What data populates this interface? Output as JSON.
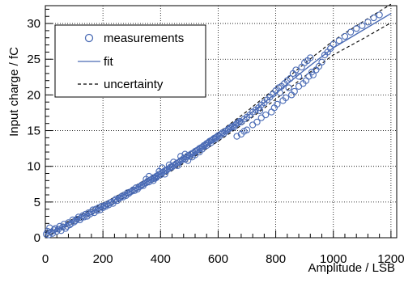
{
  "chart_data": {
    "type": "scatter",
    "xlabel": "Amplitude / LSB",
    "ylabel": "Input charge / fC",
    "xlim": [
      0,
      1220
    ],
    "ylim": [
      0,
      32.5
    ],
    "x_ticks": [
      0,
      200,
      400,
      600,
      800,
      1000,
      1200
    ],
    "y_ticks": [
      0,
      5,
      10,
      15,
      20,
      25,
      30
    ],
    "grid": true,
    "legend_position": "top-left",
    "legend": [
      {
        "label": "measurements",
        "style": "open-circle"
      },
      {
        "label": "fit",
        "style": "solid-line"
      },
      {
        "label": "uncertainty",
        "style": "dashed-line"
      }
    ],
    "colors": {
      "measurements": "#4a6bb5",
      "fit": "#4a6bb5",
      "uncertainty": "#000000"
    },
    "series": [
      {
        "name": "measurements",
        "kind": "points",
        "points": [
          [
            3,
            0.5
          ],
          [
            8,
            0.9
          ],
          [
            12,
            0.4
          ],
          [
            15,
            1.4
          ],
          [
            20,
            0.8
          ],
          [
            25,
            0.6
          ],
          [
            30,
            1.1
          ],
          [
            35,
            1.3
          ],
          [
            40,
            0.9
          ],
          [
            45,
            1.2
          ],
          [
            50,
            1.6
          ],
          [
            55,
            1.0
          ],
          [
            60,
            1.5
          ],
          [
            65,
            1.9
          ],
          [
            70,
            1.3
          ],
          [
            75,
            1.6
          ],
          [
            80,
            2.1
          ],
          [
            85,
            1.8
          ],
          [
            90,
            2.0
          ],
          [
            95,
            2.5
          ],
          [
            100,
            2.2
          ],
          [
            105,
            2.4
          ],
          [
            110,
            2.6
          ],
          [
            115,
            2.9
          ],
          [
            120,
            2.5
          ],
          [
            125,
            2.8
          ],
          [
            130,
            3.1
          ],
          [
            135,
            2.9
          ],
          [
            140,
            3.3
          ],
          [
            145,
            3.0
          ],
          [
            150,
            3.5
          ],
          [
            155,
            3.3
          ],
          [
            160,
            3.6
          ],
          [
            165,
            3.9
          ],
          [
            170,
            3.5
          ],
          [
            175,
            4.0
          ],
          [
            180,
            3.8
          ],
          [
            185,
            4.2
          ],
          [
            190,
            3.9
          ],
          [
            195,
            4.4
          ],
          [
            200,
            4.2
          ],
          [
            205,
            4.5
          ],
          [
            210,
            4.4
          ],
          [
            215,
            4.7
          ],
          [
            220,
            4.6
          ],
          [
            225,
            4.9
          ],
          [
            230,
            5.0
          ],
          [
            235,
            4.8
          ],
          [
            240,
            5.2
          ],
          [
            245,
            5.4
          ],
          [
            250,
            5.2
          ],
          [
            255,
            5.5
          ],
          [
            260,
            5.6
          ],
          [
            265,
            5.8
          ],
          [
            270,
            5.7
          ],
          [
            275,
            6.0
          ],
          [
            280,
            5.9
          ],
          [
            285,
            6.3
          ],
          [
            290,
            6.2
          ],
          [
            295,
            6.4
          ],
          [
            300,
            6.5
          ],
          [
            305,
            6.7
          ],
          [
            310,
            6.6
          ],
          [
            315,
            7.0
          ],
          [
            320,
            6.8
          ],
          [
            325,
            7.1
          ],
          [
            330,
            7.2
          ],
          [
            335,
            7.4
          ],
          [
            340,
            7.3
          ],
          [
            345,
            7.6
          ],
          [
            350,
            7.7
          ],
          [
            355,
            7.9
          ],
          [
            360,
            7.8
          ],
          [
            365,
            8.1
          ],
          [
            370,
            8.2
          ],
          [
            375,
            8.4
          ],
          [
            380,
            8.3
          ],
          [
            385,
            8.6
          ],
          [
            390,
            8.7
          ],
          [
            395,
            8.9
          ],
          [
            400,
            8.8
          ],
          [
            405,
            9.1
          ],
          [
            410,
            9.2
          ],
          [
            415,
            9.4
          ],
          [
            420,
            9.4
          ],
          [
            425,
            9.6
          ],
          [
            430,
            9.7
          ],
          [
            435,
            9.9
          ],
          [
            440,
            9.9
          ],
          [
            445,
            10.1
          ],
          [
            450,
            10.2
          ],
          [
            455,
            10.4
          ],
          [
            460,
            10.5
          ],
          [
            465,
            10.6
          ],
          [
            470,
            10.8
          ],
          [
            475,
            10.9
          ],
          [
            480,
            11.1
          ],
          [
            485,
            11.0
          ],
          [
            490,
            11.3
          ],
          [
            495,
            11.5
          ],
          [
            500,
            11.4
          ],
          [
            505,
            11.7
          ],
          [
            510,
            11.8
          ],
          [
            515,
            11.9
          ],
          [
            520,
            12.1
          ],
          [
            525,
            12.2
          ],
          [
            530,
            12.3
          ],
          [
            535,
            12.5
          ],
          [
            540,
            12.6
          ],
          [
            545,
            12.7
          ],
          [
            550,
            12.9
          ],
          [
            555,
            13.0
          ],
          [
            560,
            13.2
          ],
          [
            565,
            13.3
          ],
          [
            570,
            13.5
          ],
          [
            575,
            13.6
          ],
          [
            580,
            13.7
          ],
          [
            585,
            13.9
          ],
          [
            590,
            14.0
          ],
          [
            595,
            14.1
          ],
          [
            600,
            14.3
          ],
          [
            605,
            14.2
          ],
          [
            610,
            14.5
          ],
          [
            615,
            14.7
          ],
          [
            620,
            14.6
          ],
          [
            625,
            14.9
          ],
          [
            630,
            15.0
          ],
          [
            635,
            15.2
          ],
          [
            640,
            15.3
          ],
          [
            645,
            15.5
          ],
          [
            650,
            15.6
          ],
          [
            655,
            15.5
          ],
          [
            660,
            15.8
          ],
          [
            665,
            16.0
          ],
          [
            670,
            16.1
          ],
          [
            675,
            16.3
          ],
          [
            680,
            16.2
          ],
          [
            690,
            16.6
          ],
          [
            700,
            16.9
          ],
          [
            710,
            17.2
          ],
          [
            720,
            17.6
          ],
          [
            730,
            17.9
          ],
          [
            740,
            18.2
          ],
          [
            745,
            17.8
          ],
          [
            750,
            18.6
          ],
          [
            760,
            18.9
          ],
          [
            770,
            19.3
          ],
          [
            780,
            19.7
          ],
          [
            790,
            20.1
          ],
          [
            800,
            20.6
          ],
          [
            810,
            21.0
          ],
          [
            815,
            20.3
          ],
          [
            820,
            21.2
          ],
          [
            830,
            21.6
          ],
          [
            840,
            22.0
          ],
          [
            845,
            21.0
          ],
          [
            850,
            22.3
          ],
          [
            860,
            23.0
          ],
          [
            870,
            23.5
          ],
          [
            880,
            22.6
          ],
          [
            890,
            23.9
          ],
          [
            900,
            24.5
          ],
          [
            910,
            24.8
          ],
          [
            920,
            25.2
          ],
          [
            930,
            22.8
          ],
          [
            940,
            23.5
          ],
          [
            950,
            24.0
          ],
          [
            960,
            24.6
          ],
          [
            970,
            25.6
          ],
          [
            980,
            26.0
          ],
          [
            990,
            26.5
          ],
          [
            1000,
            27.1
          ],
          [
            1020,
            27.6
          ],
          [
            1040,
            28.2
          ],
          [
            1060,
            28.8
          ],
          [
            1080,
            29.3
          ],
          [
            1100,
            29.7
          ],
          [
            1120,
            30.2
          ],
          [
            1140,
            30.8
          ],
          [
            1160,
            31.2
          ],
          [
            665,
            14.2
          ],
          [
            680,
            14.5
          ],
          [
            690,
            14.9
          ],
          [
            700,
            15.1
          ],
          [
            720,
            15.8
          ],
          [
            735,
            16.2
          ],
          [
            750,
            16.8
          ],
          [
            765,
            17.2
          ],
          [
            785,
            17.6
          ],
          [
            795,
            18.2
          ],
          [
            805,
            18.7
          ],
          [
            825,
            19.2
          ],
          [
            835,
            19.6
          ],
          [
            855,
            20.0
          ],
          [
            865,
            20.5
          ],
          [
            880,
            21.2
          ],
          [
            895,
            21.6
          ],
          [
            905,
            22.0
          ],
          [
            915,
            22.6
          ],
          [
            925,
            23.2
          ],
          [
            350,
            8.2
          ],
          [
            360,
            8.6
          ],
          [
            375,
            8.0
          ],
          [
            385,
            8.4
          ],
          [
            395,
            9.3
          ],
          [
            405,
            9.8
          ],
          [
            415,
            8.9
          ],
          [
            430,
            10.2
          ],
          [
            445,
            10.6
          ],
          [
            460,
            10.1
          ],
          [
            470,
            11.4
          ],
          [
            485,
            11.7
          ],
          [
            495,
            10.8
          ],
          [
            510,
            11.3
          ],
          [
            520,
            11.6
          ],
          [
            535,
            12.0
          ],
          [
            545,
            12.4
          ],
          [
            560,
            12.9
          ],
          [
            575,
            13.3
          ],
          [
            590,
            13.8
          ]
        ]
      },
      {
        "name": "fit",
        "kind": "line",
        "points": [
          [
            0,
            0.4
          ],
          [
            100,
            2.4
          ],
          [
            200,
            4.4
          ],
          [
            300,
            6.6
          ],
          [
            400,
            8.9
          ],
          [
            500,
            11.4
          ],
          [
            600,
            14.1
          ],
          [
            700,
            17.0
          ],
          [
            800,
            20.2
          ],
          [
            900,
            23.5
          ],
          [
            1000,
            26.6
          ],
          [
            1100,
            29.0
          ],
          [
            1200,
            31.4
          ]
        ]
      },
      {
        "name": "uncertainty upper",
        "kind": "dashed-line",
        "points": [
          [
            0,
            0.7
          ],
          [
            100,
            2.7
          ],
          [
            200,
            4.8
          ],
          [
            300,
            7.0
          ],
          [
            400,
            9.4
          ],
          [
            500,
            11.9
          ],
          [
            600,
            14.7
          ],
          [
            700,
            17.7
          ],
          [
            800,
            21.0
          ],
          [
            900,
            24.4
          ],
          [
            1000,
            27.6
          ],
          [
            1100,
            30.2
          ],
          [
            1200,
            32.7
          ]
        ]
      },
      {
        "name": "uncertainty lower",
        "kind": "dashed-line",
        "points": [
          [
            0,
            0.1
          ],
          [
            100,
            2.1
          ],
          [
            200,
            4.0
          ],
          [
            300,
            6.2
          ],
          [
            400,
            8.4
          ],
          [
            500,
            10.9
          ],
          [
            600,
            13.5
          ],
          [
            700,
            16.3
          ],
          [
            800,
            19.4
          ],
          [
            900,
            22.6
          ],
          [
            1000,
            25.6
          ],
          [
            1100,
            27.8
          ],
          [
            1200,
            30.1
          ]
        ]
      }
    ]
  }
}
